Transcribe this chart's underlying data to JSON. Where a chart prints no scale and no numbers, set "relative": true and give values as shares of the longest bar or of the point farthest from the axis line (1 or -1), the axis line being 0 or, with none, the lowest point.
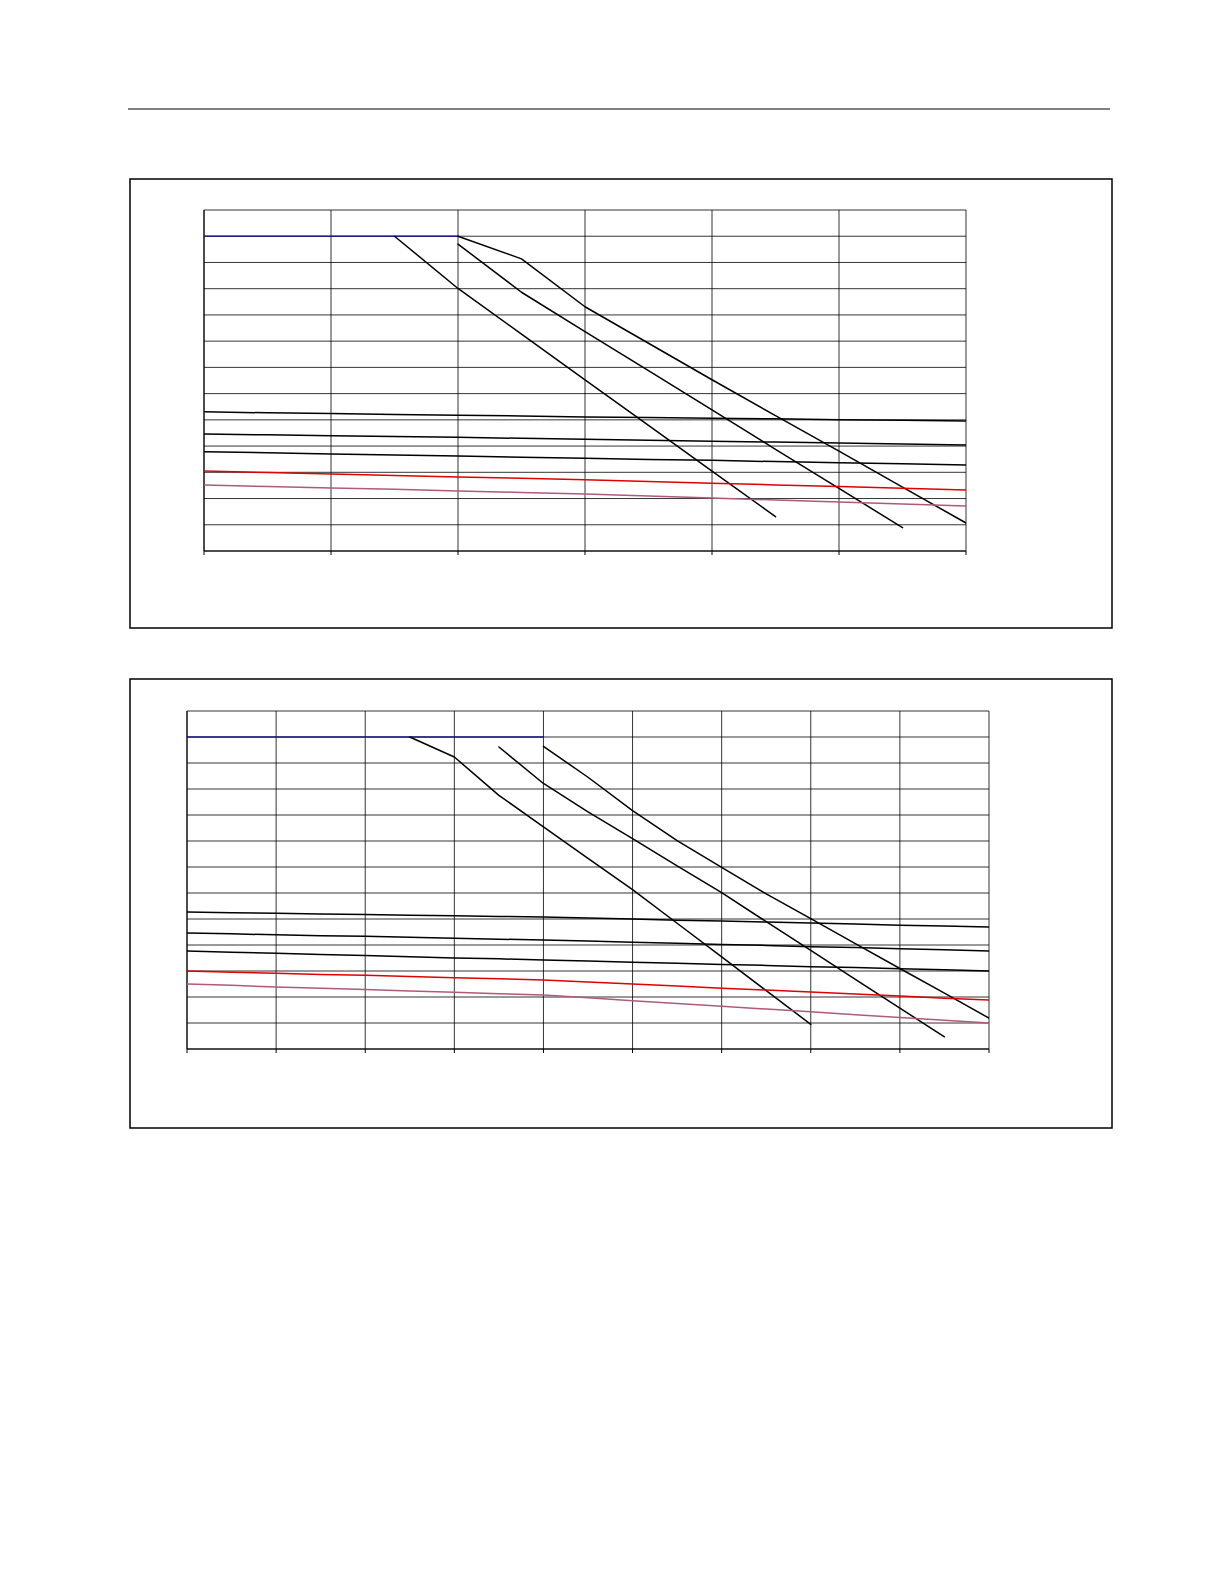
{
  "chart_data": [
    {
      "type": "line",
      "relative": true,
      "grid": true,
      "categories": [
        null,
        null,
        null,
        null,
        null,
        null,
        null,
        null,
        null,
        null,
        null,
        null,
        null
      ],
      "series": [
        {
          "color": "#1a1a8c",
          "values": [
            1,
            1,
            1,
            1,
            1,
            null,
            null,
            null,
            null,
            null,
            null,
            null,
            null
          ]
        },
        {
          "color": "#000000",
          "values": [
            null,
            null,
            null,
            1,
            0.834,
            0.689,
            0.544,
            0.399,
            0.254,
            0.109,
            null,
            null,
            null
          ]
        },
        {
          "color": "#000000",
          "values": [
            null,
            null,
            null,
            null,
            0.975,
            0.822,
            0.697,
            0.573,
            0.448,
            0.323,
            0.199,
            0.074,
            null
          ]
        },
        {
          "color": "#000000",
          "values": [
            null,
            null,
            null,
            null,
            1,
            0.928,
            0.776,
            0.66,
            0.544,
            0.43,
            0.317,
            0.203,
            0.089
          ]
        },
        {
          "color": "#000000",
          "values": [
            0.442,
            0.439,
            0.437,
            0.434,
            0.431,
            0.429,
            0.426,
            0.424,
            0.422,
            0.42,
            0.417,
            0.415,
            0.413
          ]
        },
        {
          "color": "#000000",
          "values": [
            0.372,
            0.369,
            0.366,
            0.364,
            0.361,
            0.358,
            0.355,
            0.352,
            0.349,
            0.346,
            0.343,
            0.34,
            0.337
          ]
        },
        {
          "color": "#000000",
          "values": [
            0.315,
            0.312,
            0.308,
            0.305,
            0.302,
            0.298,
            0.295,
            0.291,
            0.288,
            0.284,
            0.28,
            0.277,
            0.273
          ]
        },
        {
          "color": "#e00000",
          "values": [
            0.254,
            0.249,
            0.245,
            0.24,
            0.235,
            0.231,
            0.226,
            0.221,
            0.215,
            0.21,
            0.205,
            0.199,
            0.194
          ]
        },
        {
          "color": "#b05a78",
          "values": [
            0.21,
            0.205,
            0.2,
            0.196,
            0.191,
            0.186,
            0.181,
            0.175,
            0.168,
            0.162,
            0.156,
            0.149,
            0.143
          ]
        }
      ]
    },
    {
      "type": "line",
      "relative": true,
      "grid": true,
      "categories": [
        null,
        null,
        null,
        null,
        null,
        null,
        null,
        null,
        null,
        null,
        null,
        null,
        null,
        null,
        null,
        null,
        null,
        null,
        null
      ],
      "series": [
        {
          "color": "#1a1a8c",
          "values": [
            1,
            1,
            1,
            1,
            1,
            1,
            1,
            1,
            1,
            null,
            null,
            null,
            null,
            null,
            null,
            null,
            null,
            null,
            null
          ]
        },
        {
          "color": "#000000",
          "values": [
            null,
            null,
            null,
            null,
            null,
            1,
            0.936,
            0.813,
            0.712,
            0.611,
            0.511,
            0.403,
            0.295,
            0.187,
            0.079,
            null,
            null,
            null,
            null
          ]
        },
        {
          "color": "#000000",
          "values": [
            null,
            null,
            null,
            null,
            null,
            null,
            null,
            0.968,
            0.851,
            0.76,
            0.674,
            0.587,
            0.501,
            0.408,
            0.316,
            0.223,
            0.131,
            0.039,
            null
          ]
        },
        {
          "color": "#000000",
          "values": [
            null,
            null,
            null,
            null,
            null,
            null,
            null,
            null,
            0.97,
            0.871,
            0.764,
            0.668,
            0.582,
            0.497,
            0.418,
            0.338,
            0.258,
            0.179,
            0.099
          ]
        },
        {
          "color": "#000000",
          "values": [
            0.439,
            0.437,
            0.435,
            0.433,
            0.431,
            0.429,
            0.427,
            0.425,
            0.423,
            0.42,
            0.417,
            0.413,
            0.41,
            0.407,
            0.404,
            0.401,
            0.397,
            0.394,
            0.391
          ]
        },
        {
          "color": "#000000",
          "values": [
            0.372,
            0.369,
            0.366,
            0.363,
            0.361,
            0.358,
            0.355,
            0.352,
            0.349,
            0.346,
            0.342,
            0.339,
            0.335,
            0.332,
            0.328,
            0.325,
            0.321,
            0.318,
            0.314
          ]
        },
        {
          "color": "#000000",
          "values": [
            0.314,
            0.31,
            0.307,
            0.303,
            0.3,
            0.296,
            0.292,
            0.289,
            0.285,
            0.282,
            0.278,
            0.275,
            0.271,
            0.268,
            0.264,
            0.261,
            0.257,
            0.254,
            0.25
          ]
        },
        {
          "color": "#e00000",
          "values": [
            0.25,
            0.246,
            0.243,
            0.239,
            0.236,
            0.232,
            0.228,
            0.225,
            0.221,
            0.215,
            0.208,
            0.202,
            0.195,
            0.189,
            0.183,
            0.176,
            0.17,
            0.163,
            0.157
          ]
        },
        {
          "color": "#b05a78",
          "values": [
            0.208,
            0.204,
            0.199,
            0.195,
            0.191,
            0.186,
            0.182,
            0.177,
            0.173,
            0.164,
            0.155,
            0.146,
            0.137,
            0.128,
            0.119,
            0.11,
            0.101,
            0.092,
            0.083
          ]
        }
      ]
    }
  ]
}
